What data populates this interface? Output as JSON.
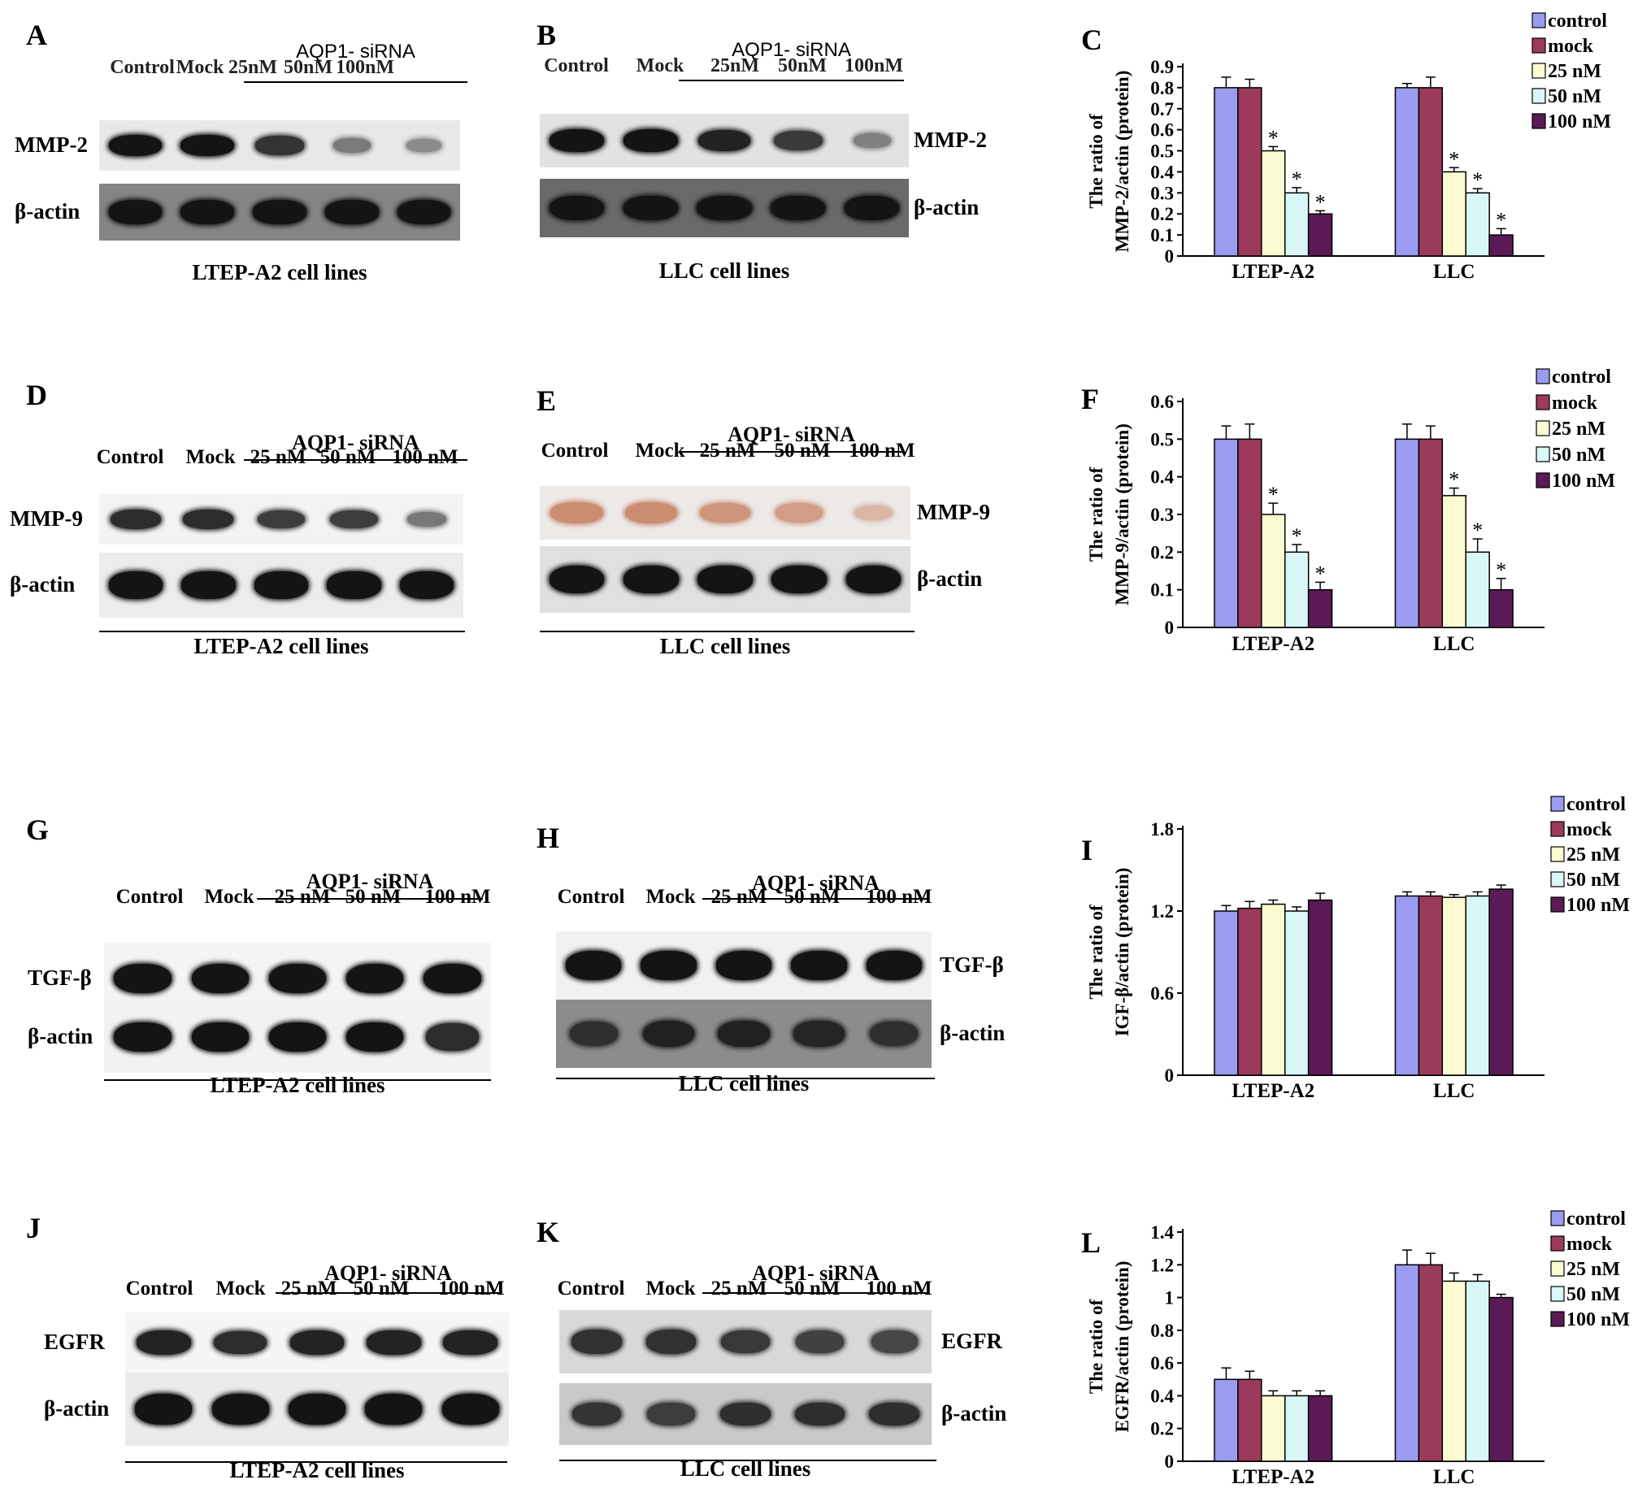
{
  "blots": [
    {
      "id": "A",
      "letter": "A",
      "variant": "blurry",
      "lanes": [
        "Control",
        "Mock",
        "25nM",
        "50nM",
        "100nM"
      ],
      "group_label": "AQP1- siRNA",
      "rows": [
        {
          "label": "MMP-2",
          "intensity": [
            1.0,
            1.0,
            0.8,
            0.35,
            0.25
          ]
        },
        {
          "label": "β-actin",
          "intensity": [
            1.0,
            1.0,
            1.0,
            1.0,
            1.0
          ]
        }
      ],
      "footer": "LTEP-A2 cell lines"
    },
    {
      "id": "B",
      "letter": "B",
      "variant": "blurry",
      "lanes": [
        "Control",
        "Mock",
        "25nM",
        "50nM",
        "100nM"
      ],
      "group_label": "AQP1- siRNA",
      "rows": [
        {
          "label": "MMP-2",
          "intensity": [
            1.0,
            1.0,
            0.9,
            0.75,
            0.3
          ]
        },
        {
          "label": "β-actin",
          "intensity": [
            1.0,
            1.0,
            1.0,
            1.0,
            1.0
          ]
        }
      ],
      "footer": "LLC cell lines"
    },
    {
      "id": "D",
      "letter": "D",
      "variant": "plain",
      "lanes": [
        "Control",
        "Mock",
        "25 nM",
        "50 nM",
        "100 nM"
      ],
      "group_label": "AQP1- siRNA",
      "rows": [
        {
          "label": "MMP-9",
          "intensity": [
            0.85,
            0.85,
            0.75,
            0.75,
            0.4
          ]
        },
        {
          "label": "β-actin",
          "intensity": [
            1.0,
            1.0,
            1.0,
            1.0,
            1.0
          ]
        }
      ],
      "footer": "LTEP-A2 cell lines"
    },
    {
      "id": "E",
      "letter": "E",
      "variant": "plain",
      "lanes": [
        "Control",
        "Mock",
        "25 nM",
        "50 nM",
        "100 nM"
      ],
      "group_label": "AQP1- siRNA",
      "rows": [
        {
          "label": "MMP-9",
          "intensity": [
            0.9,
            0.9,
            0.8,
            0.7,
            0.35
          ],
          "color": "#c9876a"
        },
        {
          "label": "β-actin",
          "intensity": [
            1.0,
            1.0,
            1.0,
            1.0,
            1.0
          ]
        }
      ],
      "footer": "LLC cell lines"
    },
    {
      "id": "G",
      "letter": "G",
      "variant": "plain",
      "lanes": [
        "Control",
        "Mock",
        "25 nM",
        "50 nM",
        "100 nM"
      ],
      "group_label": "AQP1- siRNA",
      "rows": [
        {
          "label": "TGF-β",
          "intensity": [
            1.0,
            1.0,
            1.0,
            1.0,
            1.0
          ]
        },
        {
          "label": "β-actin",
          "intensity": [
            1.0,
            1.0,
            1.0,
            1.0,
            0.85
          ]
        }
      ],
      "footer": "LTEP-A2 cell lines"
    },
    {
      "id": "H",
      "letter": "H",
      "variant": "plain",
      "lanes": [
        "Control",
        "Mock",
        "25 nM",
        "50 nM",
        "100 nM"
      ],
      "group_label": "AQP1- siRNA",
      "rows": [
        {
          "label": "TGF-β",
          "intensity": [
            1.0,
            1.0,
            1.0,
            1.0,
            1.0
          ]
        },
        {
          "label": "β-actin",
          "intensity": [
            0.7,
            0.85,
            0.85,
            0.8,
            0.7
          ]
        }
      ],
      "footer": "LLC cell lines"
    },
    {
      "id": "J",
      "letter": "J",
      "variant": "plain",
      "lanes": [
        "Control",
        "Mock",
        "25 nM",
        "50 nM",
        "100 nM"
      ],
      "group_label": "AQP1- siRNA",
      "rows": [
        {
          "label": "EGFR",
          "intensity": [
            0.9,
            0.85,
            0.9,
            0.9,
            0.9
          ]
        },
        {
          "label": "β-actin",
          "intensity": [
            1.0,
            1.0,
            1.0,
            1.0,
            1.0
          ]
        }
      ],
      "footer": "LTEP-A2 cell lines"
    },
    {
      "id": "K",
      "letter": "K",
      "variant": "plain",
      "lanes": [
        "Control",
        "Mock",
        "25 nM",
        "50 nM",
        "100 nM"
      ],
      "group_label": "AQP1- siRNA",
      "rows": [
        {
          "label": "EGFR",
          "intensity": [
            0.8,
            0.8,
            0.75,
            0.7,
            0.65
          ]
        },
        {
          "label": "β-actin",
          "intensity": [
            0.75,
            0.7,
            0.8,
            0.8,
            0.8
          ]
        }
      ],
      "footer": "LLC cell lines"
    }
  ],
  "chart_data": [
    {
      "id": "C",
      "letter": "C",
      "type": "bar",
      "ylabel": "The ratio of MMP-2/actin (protein)",
      "ylabel_lines": [
        "The ratio of",
        "MMP-2/actin (protein)"
      ],
      "ylim": [
        0,
        0.9
      ],
      "yticks": [
        0,
        0.1,
        0.2,
        0.3,
        0.4,
        0.5,
        0.6,
        0.7,
        0.8,
        0.9
      ],
      "ytick_labels": [
        "0",
        "0.1",
        "0.2",
        "0.3",
        "0.4",
        "0.5",
        "0.6",
        "0.7",
        "0.8",
        "0.9"
      ],
      "categories": [
        "LTEP-A2",
        "LLC"
      ],
      "series": [
        {
          "name": "control",
          "values": [
            0.8,
            0.8
          ],
          "errors": [
            0.05,
            0.02
          ],
          "color": "#9a9cf0"
        },
        {
          "name": "mock",
          "values": [
            0.8,
            0.8
          ],
          "errors": [
            0.04,
            0.05
          ],
          "color": "#9b3a5a"
        },
        {
          "name": "25 nM",
          "values": [
            0.5,
            0.4
          ],
          "errors": [
            0.02,
            0.02
          ],
          "color": "#fbfbd2"
        },
        {
          "name": "50 nM",
          "values": [
            0.3,
            0.3
          ],
          "errors": [
            0.025,
            0.02
          ],
          "color": "#d8f7f6"
        },
        {
          "name": "100 nM",
          "values": [
            0.2,
            0.1
          ],
          "errors": [
            0.015,
            0.03
          ],
          "color": "#5a1a55"
        }
      ],
      "significance": [
        [
          false,
          false,
          true,
          true,
          true
        ],
        [
          false,
          false,
          true,
          true,
          true
        ]
      ],
      "significance_mark": "*",
      "legend_position": "top-right"
    },
    {
      "id": "F",
      "letter": "F",
      "type": "bar",
      "ylabel": "The ratio of MMP-9/actin (protein)",
      "ylabel_lines": [
        "The ratio of",
        "MMP-9/actin (protein)"
      ],
      "ylim": [
        0,
        0.6
      ],
      "yticks": [
        0,
        0.1,
        0.2,
        0.3,
        0.4,
        0.5,
        0.6
      ],
      "ytick_labels": [
        "0",
        "0.1",
        "0.2",
        "0.3",
        "0.4",
        "0.5",
        "0.6"
      ],
      "categories": [
        "LTEP-A2",
        "LLC"
      ],
      "series": [
        {
          "name": "control",
          "values": [
            0.5,
            0.5
          ],
          "errors": [
            0.035,
            0.04
          ],
          "color": "#9a9cf0"
        },
        {
          "name": "mock",
          "values": [
            0.5,
            0.5
          ],
          "errors": [
            0.04,
            0.035
          ],
          "color": "#9b3a5a"
        },
        {
          "name": "25 nM",
          "values": [
            0.3,
            0.35
          ],
          "errors": [
            0.03,
            0.02
          ],
          "color": "#fbfbd2"
        },
        {
          "name": "50 nM",
          "values": [
            0.2,
            0.2
          ],
          "errors": [
            0.02,
            0.035
          ],
          "color": "#d8f7f6"
        },
        {
          "name": "100 nM",
          "values": [
            0.1,
            0.1
          ],
          "errors": [
            0.02,
            0.03
          ],
          "color": "#5a1a55"
        }
      ],
      "significance": [
        [
          false,
          false,
          true,
          true,
          true
        ],
        [
          false,
          false,
          true,
          true,
          true
        ]
      ],
      "significance_mark": "*",
      "legend_position": "top-right"
    },
    {
      "id": "I",
      "letter": "I",
      "type": "bar",
      "ylabel": "The ratio of IGF-β/actin (protein)",
      "ylabel_lines": [
        "The ratio of",
        "IGF-β/actin (protein)"
      ],
      "ylim": [
        0,
        1.8
      ],
      "yticks": [
        0,
        0.6,
        1.2,
        1.8
      ],
      "ytick_labels": [
        "0",
        "0.6",
        "1.2",
        "1.8"
      ],
      "categories": [
        "LTEP-A2",
        "LLC"
      ],
      "series": [
        {
          "name": "control",
          "values": [
            1.2,
            1.31
          ],
          "errors": [
            0.04,
            0.03
          ],
          "color": "#9a9cf0"
        },
        {
          "name": "mock",
          "values": [
            1.22,
            1.31
          ],
          "errors": [
            0.05,
            0.03
          ],
          "color": "#9b3a5a"
        },
        {
          "name": "25 nM",
          "values": [
            1.25,
            1.3
          ],
          "errors": [
            0.03,
            0.02
          ],
          "color": "#fbfbd2"
        },
        {
          "name": "50 nM",
          "values": [
            1.2,
            1.31
          ],
          "errors": [
            0.03,
            0.03
          ],
          "color": "#d8f7f6"
        },
        {
          "name": "100 nM",
          "values": [
            1.28,
            1.36
          ],
          "errors": [
            0.05,
            0.03
          ],
          "color": "#5a1a55"
        }
      ],
      "significance": [
        [
          false,
          false,
          false,
          false,
          false
        ],
        [
          false,
          false,
          false,
          false,
          false
        ]
      ],
      "significance_mark": "*",
      "legend_position": "top-right"
    },
    {
      "id": "L",
      "letter": "L",
      "type": "bar",
      "ylabel": "The ratio of EGFR/actin (protein)",
      "ylabel_lines": [
        "The ratio of",
        "EGFR/actin (protein)"
      ],
      "ylim": [
        0,
        1.4
      ],
      "yticks": [
        0,
        0.2,
        0.4,
        0.6,
        0.8,
        1.0,
        1.2,
        1.4
      ],
      "ytick_labels": [
        "0",
        "0.2",
        "0.4",
        "0.6",
        "0.8",
        "1",
        "1.2",
        "1.4"
      ],
      "categories": [
        "LTEP-A2",
        "LLC"
      ],
      "series": [
        {
          "name": "control",
          "values": [
            0.5,
            1.2
          ],
          "errors": [
            0.07,
            0.09
          ],
          "color": "#9a9cf0"
        },
        {
          "name": "mock",
          "values": [
            0.5,
            1.2
          ],
          "errors": [
            0.05,
            0.07
          ],
          "color": "#9b3a5a"
        },
        {
          "name": "25 nM",
          "values": [
            0.4,
            1.1
          ],
          "errors": [
            0.03,
            0.05
          ],
          "color": "#fbfbd2"
        },
        {
          "name": "50 nM",
          "values": [
            0.4,
            1.1
          ],
          "errors": [
            0.03,
            0.04
          ],
          "color": "#d8f7f6"
        },
        {
          "name": "100 nM",
          "values": [
            0.4,
            1.0
          ],
          "errors": [
            0.03,
            0.02
          ],
          "color": "#5a1a55"
        }
      ],
      "significance": [
        [
          false,
          false,
          false,
          false,
          false
        ],
        [
          false,
          false,
          false,
          false,
          false
        ]
      ],
      "significance_mark": "*",
      "legend_position": "top-right"
    }
  ]
}
